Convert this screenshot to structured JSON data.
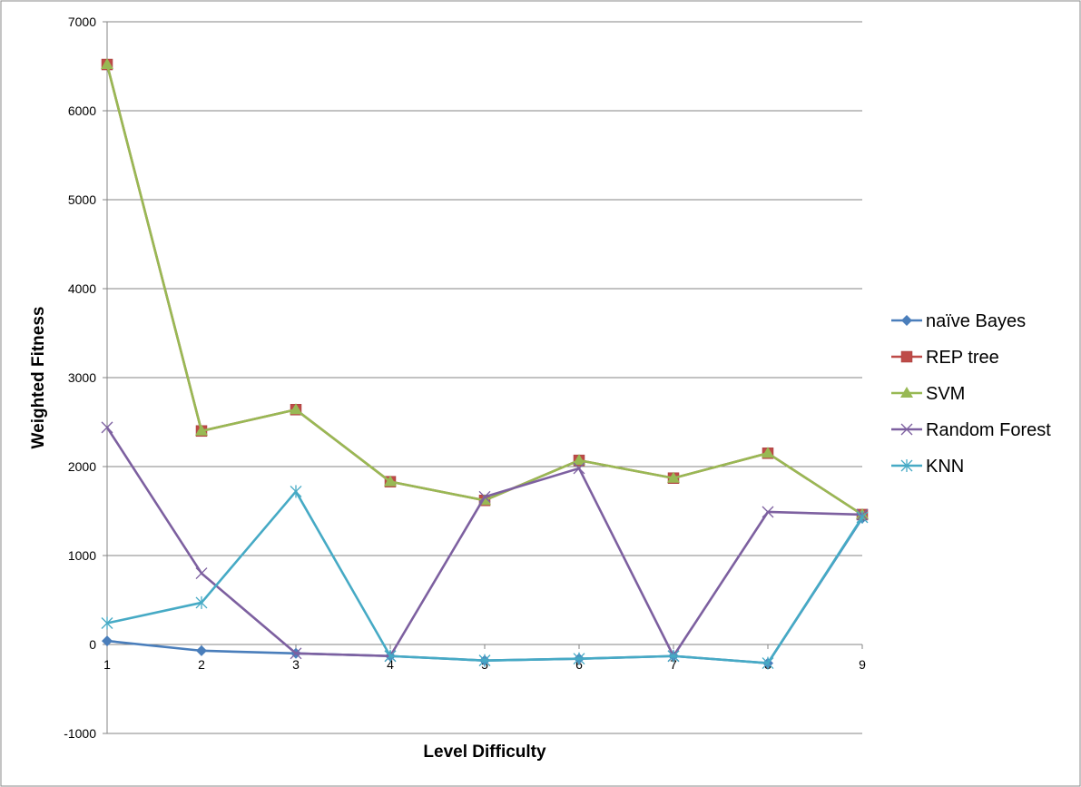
{
  "chart_data": {
    "type": "line",
    "xlabel": "Level Difficulty",
    "ylabel": "Weighted Fitness",
    "x": [
      "1",
      "2",
      "3",
      "4",
      "5",
      "6",
      "7",
      "8",
      "9"
    ],
    "ylim": [
      -1000,
      7000
    ],
    "yticks": [
      "-1000",
      "0",
      "1000",
      "2000",
      "3000",
      "4000",
      "5000",
      "6000",
      "7000"
    ],
    "grid": true,
    "legend_position": "right",
    "series": [
      {
        "name": "naïve Bayes",
        "color": "#4a7ebb",
        "marker": "diamond",
        "values": [
          40,
          -70,
          -100,
          -130,
          -180,
          -160,
          -130,
          -210,
          1420
        ]
      },
      {
        "name": "REP tree",
        "color": "#be4b48",
        "marker": "square",
        "values": [
          6520,
          2400,
          2640,
          1830,
          1620,
          2070,
          1870,
          2150,
          1460
        ]
      },
      {
        "name": "SVM",
        "color": "#98b954",
        "marker": "triangle",
        "values": [
          6520,
          2400,
          2640,
          1830,
          1620,
          2070,
          1870,
          2150,
          1460
        ]
      },
      {
        "name": "Random Forest",
        "color": "#7d60a0",
        "marker": "x",
        "values": [
          2440,
          800,
          -100,
          -130,
          1660,
          1980,
          -130,
          1490,
          1460
        ]
      },
      {
        "name": "KNN",
        "color": "#46aac5",
        "marker": "asterisk",
        "values": [
          240,
          470,
          1720,
          -130,
          -180,
          -160,
          -130,
          -210,
          1430
        ]
      }
    ]
  }
}
